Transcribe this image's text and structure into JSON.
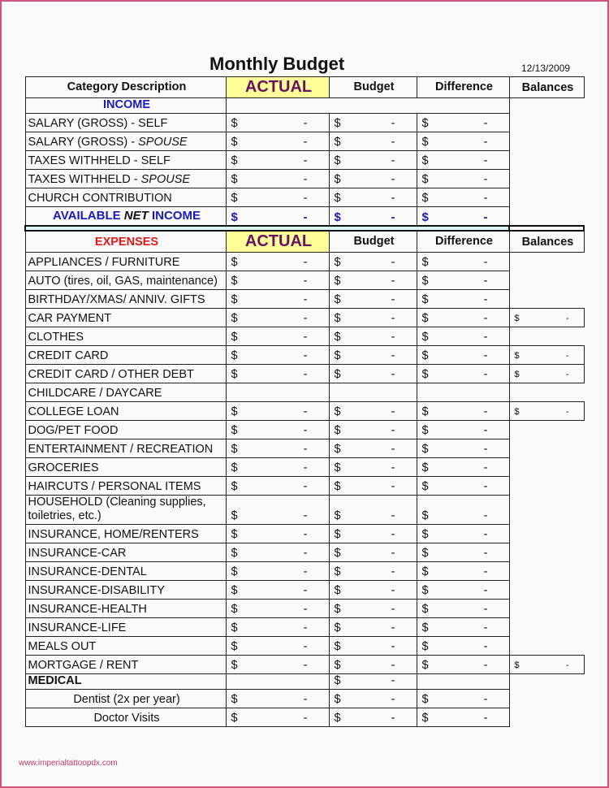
{
  "title": "Monthly Budget",
  "date": "12/13/2009",
  "currency": "$",
  "headers": {
    "category": "Category Description",
    "actual": "ACTUAL",
    "budget": "Budget",
    "difference": "Difference",
    "balances": "Balances"
  },
  "income": {
    "label": "INCOME",
    "rows": [
      {
        "label": "SALARY (GROSS) - ",
        "label_italic": "",
        "actual": "-",
        "budget": "-",
        "diff": "-"
      },
      {
        "label": "SALARY (GROSS) - ",
        "label_italic": "SPOUSE",
        "actual": "-",
        "budget": "-",
        "diff": "-"
      },
      {
        "label": "TAXES WITHHELD - SELF",
        "label_italic": "",
        "actual": "-",
        "budget": "-",
        "diff": "-"
      },
      {
        "label": "TAXES WITHHELD - ",
        "label_italic": "SPOUSE",
        "actual": "-",
        "budget": "-",
        "diff": "-"
      },
      {
        "label": "CHURCH CONTRIBUTION",
        "label_italic": "",
        "actual": "-",
        "budget": "-",
        "diff": "-"
      }
    ],
    "net": {
      "label_a": "AVAILABLE ",
      "label_b": "NET",
      "label_c": " INCOME",
      "actual": "-",
      "budget": "-",
      "diff": "-"
    }
  },
  "expenses": {
    "label": "EXPENSES",
    "rows": [
      {
        "label": "APPLIANCES / FURNITURE",
        "actual": "-",
        "budget": "-",
        "diff": "-"
      },
      {
        "label": "AUTO (tires, oil, GAS, maintenance)",
        "actual": "-",
        "budget": "-",
        "diff": "-"
      },
      {
        "label": "BIRTHDAY/XMAS/ ANNIV. GIFTS",
        "actual": "-",
        "budget": "-",
        "diff": "-"
      },
      {
        "label": "CAR PAYMENT",
        "actual": "-",
        "budget": "-",
        "diff": "-",
        "balance": "-"
      },
      {
        "label": "CLOTHES",
        "actual": "-",
        "budget": "-",
        "diff": "-"
      },
      {
        "label": "CREDIT CARD",
        "actual": "-",
        "budget": "-",
        "diff": "-",
        "balance": "-"
      },
      {
        "label": "CREDIT CARD / OTHER DEBT",
        "actual": "-",
        "budget": "-",
        "diff": "-",
        "balance": "-"
      },
      {
        "label": "CHILDCARE / DAYCARE"
      },
      {
        "label": "COLLEGE LOAN",
        "actual": "-",
        "budget": "-",
        "diff": "-",
        "balance": "-"
      },
      {
        "label": "DOG/PET FOOD",
        "actual": "-",
        "budget": "-",
        "diff": "-"
      },
      {
        "label": "ENTERTAINMENT / RECREATION",
        "actual": "-",
        "budget": "-",
        "diff": "-"
      },
      {
        "label": "GROCERIES",
        "actual": "-",
        "budget": "-",
        "diff": "-"
      },
      {
        "label": "HAIRCUTS / PERSONAL ITEMS",
        "actual": "-",
        "budget": "-",
        "diff": "-"
      },
      {
        "label": "HOUSEHOLD (Cleaning supplies, toiletries, etc.)",
        "actual": "-",
        "budget": "-",
        "diff": "-",
        "tall": true
      },
      {
        "label": "INSURANCE, HOME/RENTERS",
        "actual": "-",
        "budget": "-",
        "diff": "-"
      },
      {
        "label": "INSURANCE-CAR",
        "actual": "-",
        "budget": "-",
        "diff": "-"
      },
      {
        "label": "INSURANCE-DENTAL",
        "actual": "-",
        "budget": "-",
        "diff": "-"
      },
      {
        "label": "INSURANCE-DISABILITY",
        "actual": "-",
        "budget": "-",
        "diff": "-"
      },
      {
        "label": "INSURANCE-HEALTH",
        "actual": "-",
        "budget": "-",
        "diff": "-"
      },
      {
        "label": "INSURANCE-LIFE",
        "actual": "-",
        "budget": "-",
        "diff": "-"
      },
      {
        "label": "MEALS OUT",
        "actual": "-",
        "budget": "-",
        "diff": "-"
      },
      {
        "label": "MORTGAGE / RENT",
        "actual": "-",
        "budget": "-",
        "diff": "-",
        "balance": "-"
      },
      {
        "label": "MEDICAL",
        "bold": true,
        "budget": "-",
        "short": true
      },
      {
        "label": "Dentist (2x per year)",
        "actual": "-",
        "budget": "-",
        "diff": "-",
        "center": true
      },
      {
        "label": "Doctor Visits",
        "actual": "-",
        "budget": "-",
        "diff": "-",
        "center": true
      }
    ]
  },
  "watermark": "www.imperialtattoopdx.com",
  "colors": {
    "actual_bg": "#ffff99",
    "actual_text": "#6b1060",
    "income": "#1a1ab8",
    "expenses": "#e01818",
    "separator": "#d8f8f8",
    "frame": "#d0547a"
  }
}
